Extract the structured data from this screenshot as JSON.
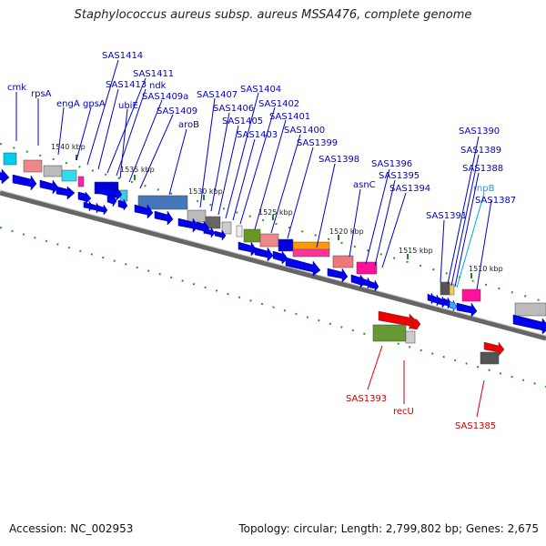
{
  "title": "Staphylococcus aureus subsp. aureus MSSA476, complete genome",
  "footer": {
    "accession": "Accession: NC_002953",
    "topology": "Topology: circular; Length: 2,799,802 bp; Genes: 2,675"
  },
  "colors": {
    "blue_label": "#0000cc",
    "red_label": "#cc0000",
    "cyan_label": "#00aadd",
    "backbone": "#777777",
    "tick": "#228822"
  },
  "tick_labels": [
    "1540 kbp",
    "1535 kbp",
    "1530 kbp",
    "1525 kbp",
    "1520 kbp",
    "1515 kbp",
    "1510 kbp"
  ],
  "top_gene_labels": [
    "cmk",
    "rpsA",
    "engA",
    "gpsA",
    "SAS1414",
    "SAS1413",
    "SAS1411",
    "ndk",
    "ubiE",
    "SAS1409a",
    "SAS1409",
    "aroB",
    "SAS1407",
    "SAS1406",
    "SAS1405",
    "SAS1404",
    "SAS1403",
    "SAS1402",
    "SAS1401",
    "SAS1400",
    "SAS1399",
    "SAS1398",
    "asnC",
    "SAS1396",
    "SAS1395",
    "SAS1394",
    "SAS1391",
    "SAS1390",
    "SAS1389",
    "SAS1388",
    "rnpB",
    "SAS1387"
  ],
  "bottom_gene_labels": [
    "SAS1393",
    "recU",
    "SAS1385"
  ]
}
